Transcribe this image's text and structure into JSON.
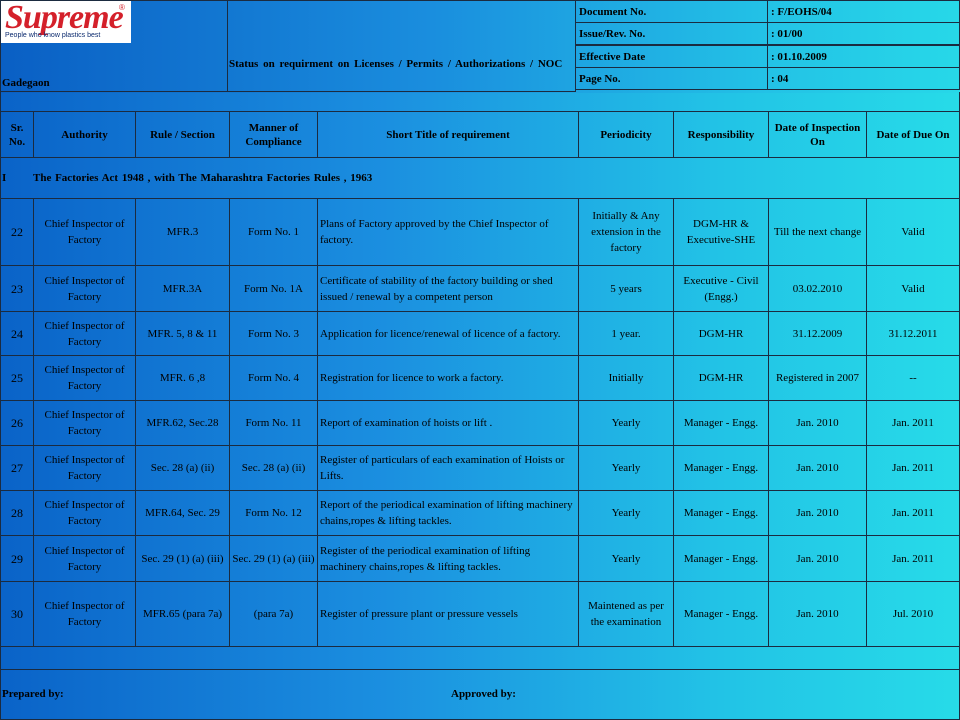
{
  "header": {
    "logo_text": "Supreme",
    "logo_reg": "®",
    "logo_tagline": "People who know plastics best",
    "location": "Gadegaon",
    "title": "Status on requirment on Licenses / Permits / Authorizations / NOC",
    "meta": [
      {
        "label": "Document No.",
        "value": ": F/EOHS/04"
      },
      {
        "label": "Issue/Rev. No.",
        "value": ": 01/00"
      },
      {
        "label": "Effective Date",
        "value": ": 01.10.2009"
      },
      {
        "label": "Page No.",
        "value": ": 04"
      }
    ]
  },
  "table": {
    "columns": [
      "Sr. No.",
      "Authority",
      "Rule / Section",
      "Manner of Compliance",
      "Short Title of requirement",
      "Periodicity",
      "Responsibility",
      "Date of Inspection On",
      "Date of Due On"
    ],
    "section": {
      "number": "I",
      "title": "The Factories Act 1948 , with The Maharashtra  Factories Rules , 1963"
    },
    "rows": [
      {
        "sr": "22",
        "authority": "Chief Inspector of Factory",
        "rule": "MFR.3",
        "manner": "Form No. 1",
        "title": "Plans of Factory approved by the Chief Inspector of factory.",
        "periodicity": "Initially & Any extension in the factory",
        "responsibility": "DGM-HR & Executive-SHE",
        "inspection": "Till the next change",
        "due": "Valid"
      },
      {
        "sr": "23",
        "authority": "Chief Inspector of Factory",
        "rule": "MFR.3A",
        "manner": "Form No. 1A",
        "title": "Certificate of stability of the factory building or shed issued / renewal by a competent person",
        "periodicity": "5 years",
        "responsibility": "Executive - Civil (Engg.)",
        "inspection": "03.02.2010",
        "due": "Valid"
      },
      {
        "sr": "24",
        "authority": "Chief Inspector of Factory",
        "rule": "MFR. 5, 8 & 11",
        "manner": "Form No. 3",
        "title": "Application for licence/renewal of licence of a factory.",
        "periodicity": "1 year.",
        "responsibility": "DGM-HR",
        "inspection": "31.12.2009",
        "due": "31.12.2011"
      },
      {
        "sr": "25",
        "authority": "Chief Inspector of Factory",
        "rule": "MFR. 6 ,8",
        "manner": "Form No. 4",
        "title": "Registration for licence to work a factory.",
        "periodicity": "Initially",
        "responsibility": "DGM-HR",
        "inspection": "Registered in 2007",
        "due": "--"
      },
      {
        "sr": "26",
        "authority": "Chief Inspector of Factory",
        "rule": "MFR.62, Sec.28",
        "manner": "Form No. 11",
        "title": "Report of examination of hoists or lift .",
        "periodicity": "Yearly",
        "responsibility": "Manager - Engg.",
        "inspection": "Jan. 2010",
        "due": "Jan. 2011"
      },
      {
        "sr": "27",
        "authority": "Chief Inspector of Factory",
        "rule": "Sec. 28 (a) (ii)",
        "manner": "Sec. 28 (a) (ii)",
        "title": "Register of particulars of each examination of Hoists or Lifts.",
        "periodicity": "Yearly",
        "responsibility": "Manager - Engg.",
        "inspection": "Jan. 2010",
        "due": "Jan. 2011"
      },
      {
        "sr": "28",
        "authority": "Chief Inspector of Factory",
        "rule": "MFR.64, Sec. 29",
        "manner": "Form No. 12",
        "title": "Report of the periodical examination of lifting machinery chains,ropes & lifting tackles.",
        "periodicity": "Yearly",
        "responsibility": "Manager - Engg.",
        "inspection": "Jan. 2010",
        "due": "Jan. 2011"
      },
      {
        "sr": "29",
        "authority": "Chief Inspector of Factory",
        "rule": "Sec. 29 (1) (a) (iii)",
        "manner": "Sec. 29 (1) (a) (iii)",
        "title": "Register of the periodical examination of lifting machinery chains,ropes & lifting tackles.",
        "periodicity": "Yearly",
        "responsibility": "Manager - Engg.",
        "inspection": "Jan. 2010",
        "due": "Jan. 2011"
      },
      {
        "sr": "30",
        "authority": "Chief Inspector of Factory",
        "rule": "MFR.65 (para 7a)",
        "manner": "(para 7a)",
        "title": "Register of pressure plant or pressure vessels",
        "periodicity": "Maintened as per the examination",
        "responsibility": "Manager - Engg.",
        "inspection": "Jan. 2010",
        "due": "Jul. 2010"
      }
    ]
  },
  "footer": {
    "prepared_by": "Prepared by:",
    "approved_by": "Approved by:"
  }
}
